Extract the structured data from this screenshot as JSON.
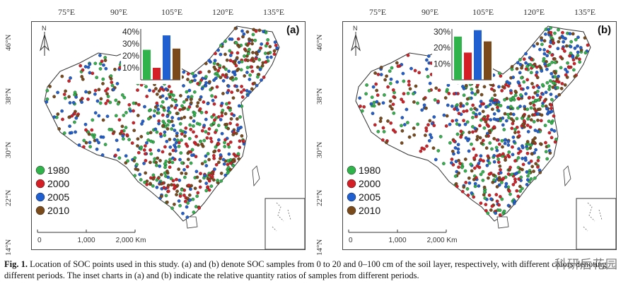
{
  "longitude_ticks": [
    "75°E",
    "90°E",
    "105°E",
    "120°E",
    "135°E"
  ],
  "latitude_ticks": [
    "46°N",
    "38°N",
    "30°N",
    "22°N",
    "14°N"
  ],
  "panels": [
    {
      "label": "(a)",
      "inset_chart": {
        "ticks": [
          "40%",
          "30%",
          "20%",
          "10%"
        ],
        "values": [
          0.25,
          0.1,
          0.37,
          0.26
        ]
      },
      "legend": [
        "1980",
        "2000",
        "2005",
        "2010"
      ],
      "scale_bar": [
        "0",
        "1,000",
        "2,000 Km"
      ]
    },
    {
      "label": "(b)",
      "inset_chart": {
        "ticks": [
          "30%",
          "20%",
          "10%"
        ],
        "values": [
          0.27,
          0.17,
          0.31,
          0.24
        ]
      },
      "legend": [
        "1980",
        "2000",
        "2005",
        "2010"
      ],
      "scale_bar": [
        "0",
        "1,000",
        "2,000 Km"
      ]
    }
  ],
  "colors": {
    "1980": "#2fb34a",
    "2000": "#d41f26",
    "2005": "#1f5fcf",
    "2010": "#7a4a1a"
  },
  "caption": {
    "fig_label": "Fig. 1.",
    "text": "Location of SOC points used in this study. (a) and (b) denote SOC samples from 0 to 20 and 0–100 cm of the soil layer, respectively, with different colors denoting different periods. The inset charts in (a) and (b) indicate the relative quantity ratios of samples from different periods."
  },
  "watermark": "科研后花园"
}
